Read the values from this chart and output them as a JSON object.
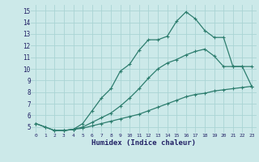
{
  "xlabel": "Humidex (Indice chaleur)",
  "background_color": "#cce9e9",
  "grid_color": "#aad4d4",
  "line_color": "#2d7d6e",
  "xlim": [
    -0.5,
    23.5
  ],
  "ylim": [
    4.5,
    15.5
  ],
  "xticks": [
    0,
    1,
    2,
    3,
    4,
    5,
    6,
    7,
    8,
    9,
    10,
    11,
    12,
    13,
    14,
    15,
    16,
    17,
    18,
    19,
    20,
    21,
    22,
    23
  ],
  "yticks": [
    5,
    6,
    7,
    8,
    9,
    10,
    11,
    12,
    13,
    14,
    15
  ],
  "line1_x": [
    2,
    3,
    4,
    5,
    6,
    7,
    8,
    9,
    10,
    11,
    12,
    13,
    14,
    15,
    16,
    17,
    18,
    19,
    20,
    21,
    22,
    23
  ],
  "line1_y": [
    4.7,
    4.7,
    4.8,
    5.3,
    6.4,
    7.5,
    8.3,
    9.8,
    10.4,
    11.6,
    12.5,
    12.5,
    12.8,
    14.1,
    14.9,
    14.3,
    13.3,
    12.7,
    12.7,
    10.2,
    10.2,
    10.2
  ],
  "line2_x": [
    0,
    1,
    2,
    3,
    4,
    5,
    6,
    7,
    8,
    9,
    10,
    11,
    12,
    13,
    14,
    15,
    16,
    17,
    18,
    19,
    20,
    21,
    22,
    23
  ],
  "line2_y": [
    5.3,
    5.0,
    4.7,
    4.7,
    4.8,
    5.0,
    5.4,
    5.8,
    6.2,
    6.8,
    7.5,
    8.3,
    9.2,
    10.0,
    10.5,
    10.8,
    11.2,
    11.5,
    11.7,
    11.1,
    10.2,
    10.2,
    10.2,
    8.5
  ],
  "line3_x": [
    0,
    1,
    2,
    3,
    4,
    5,
    6,
    7,
    8,
    9,
    10,
    11,
    12,
    13,
    14,
    15,
    16,
    17,
    18,
    19,
    20,
    21,
    22,
    23
  ],
  "line3_y": [
    5.3,
    5.0,
    4.7,
    4.7,
    4.8,
    4.9,
    5.1,
    5.3,
    5.5,
    5.7,
    5.9,
    6.1,
    6.4,
    6.7,
    7.0,
    7.3,
    7.6,
    7.8,
    7.9,
    8.1,
    8.2,
    8.3,
    8.4,
    8.5
  ]
}
